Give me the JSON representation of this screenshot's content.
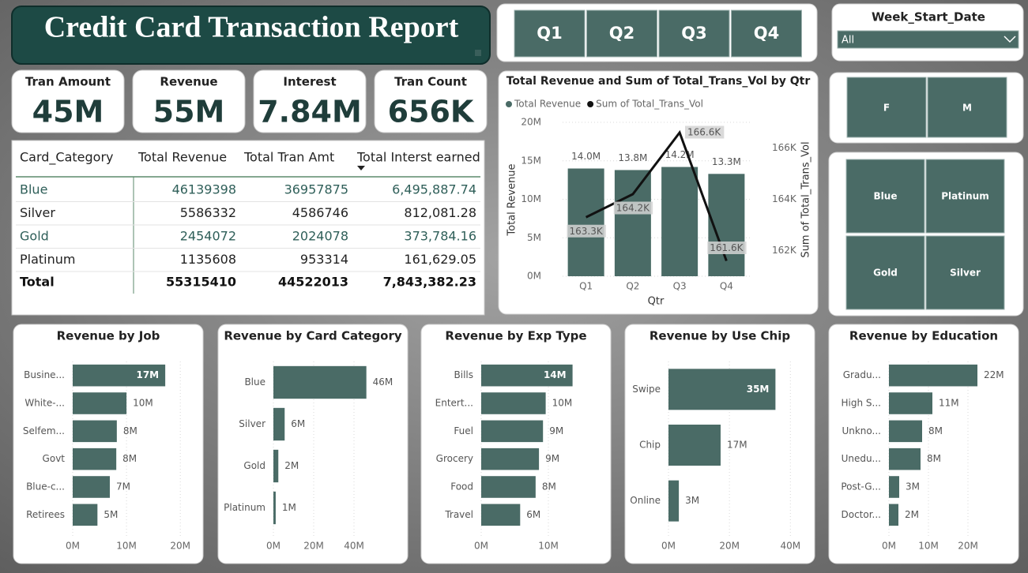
{
  "header": {
    "title": "Credit Card Transaction Report"
  },
  "quarter_slicer": {
    "options": [
      "Q1",
      "Q2",
      "Q3",
      "Q4"
    ]
  },
  "week_slicer": {
    "label": "Week_Start_Date",
    "value": "All"
  },
  "gender_slicer": {
    "options": [
      "F",
      "M"
    ]
  },
  "category_slicer": {
    "options": [
      "Blue",
      "Platinum",
      "Gold",
      "Silver"
    ]
  },
  "cards": [
    {
      "label": "Tran Amount",
      "value": "45M"
    },
    {
      "label": "Revenue",
      "value": "55M"
    },
    {
      "label": "Interest",
      "value": "7.84M"
    },
    {
      "label": "Tran Count",
      "value": "656K"
    }
  ],
  "table": {
    "columns": [
      "Card_Category",
      "Total Revenue",
      "Total Tran Amt",
      "Total Interst earned"
    ],
    "rows": [
      [
        "Blue",
        "46139398",
        "36957875",
        "6,495,887.74"
      ],
      [
        "Silver",
        "5586332",
        "4586746",
        "812,081.28"
      ],
      [
        "Gold",
        "2454072",
        "2024078",
        "373,784.16"
      ],
      [
        "Platinum",
        "1135608",
        "953314",
        "161,629.05"
      ]
    ],
    "total": [
      "Total",
      "55315410",
      "44522013",
      "7,843,382.23"
    ]
  },
  "chart_data": [
    {
      "type": "combo",
      "title": "Total Revenue and Sum of Total_Trans_Vol by Qtr",
      "x_label": "Qtr",
      "y_label": "Total Revenue",
      "y2_label": "Sum of Total_Trans_Vol",
      "categories": [
        "Q1",
        "Q2",
        "Q3",
        "Q4"
      ],
      "series": [
        {
          "name": "Total Revenue",
          "color": "#4a6b66",
          "values": [
            14.0,
            13.8,
            14.2,
            13.3
          ],
          "value_labels": [
            "14.0M",
            "13.8M",
            "14.2M",
            "13.3M"
          ]
        },
        {
          "name": "Sum of Total_Trans_Vol",
          "color": "#111111",
          "axis": "y2",
          "values": [
            163.3,
            164.2,
            166.6,
            161.6
          ],
          "value_labels": [
            "163.3K",
            "164.2K",
            "166.6K",
            "161.6K"
          ]
        }
      ],
      "ylim": [
        0,
        20
      ],
      "yticks": [
        {
          "value": 0,
          "label": "0M"
        },
        {
          "value": 5,
          "label": "5M"
        },
        {
          "value": 10,
          "label": "10M"
        },
        {
          "value": 15,
          "label": "15M"
        },
        {
          "value": 20,
          "label": "20M"
        }
      ],
      "y2lim": [
        161,
        167
      ],
      "y2ticks": [
        {
          "value": 162,
          "label": "162K"
        },
        {
          "value": 164,
          "label": "164K"
        },
        {
          "value": 166,
          "label": "166K"
        }
      ],
      "grid": true
    },
    {
      "type": "bar",
      "orientation": "horizontal",
      "title": "Revenue by Job",
      "color": "#4a6b66",
      "categories": [
        "Busine...",
        "White-...",
        "Selfem...",
        "Govt",
        "Blue-c...",
        "Retirees"
      ],
      "values": [
        17.2,
        10.0,
        8.2,
        8.1,
        6.9,
        4.6
      ],
      "value_labels": [
        "17M",
        "10M",
        "8M",
        "8M",
        "7M",
        "5M"
      ],
      "xlim": [
        0,
        21
      ],
      "xticks": [
        {
          "value": 0,
          "label": "0M"
        },
        {
          "value": 10,
          "label": "10M"
        },
        {
          "value": 20,
          "label": "20M"
        }
      ],
      "grid": true
    },
    {
      "type": "bar",
      "orientation": "horizontal",
      "title": "Revenue by Card Category",
      "color": "#4a6b66",
      "categories": [
        "Blue",
        "Silver",
        "Gold",
        "Platinum"
      ],
      "values": [
        46.14,
        5.59,
        2.45,
        1.14
      ],
      "value_labels": [
        "46M",
        "6M",
        "2M",
        "1M"
      ],
      "xlim": [
        0,
        60
      ],
      "xticks": [
        {
          "value": 0,
          "label": "0M"
        },
        {
          "value": 20,
          "label": "20M"
        },
        {
          "value": 40,
          "label": "40M"
        }
      ],
      "grid": true
    },
    {
      "type": "bar",
      "orientation": "horizontal",
      "title": "Revenue by Exp Type",
      "color": "#4a6b66",
      "categories": [
        "Bills",
        "Entert...",
        "Fuel",
        "Grocery",
        "Food",
        "Travel"
      ],
      "values": [
        13.6,
        9.6,
        9.2,
        8.6,
        8.1,
        5.8
      ],
      "value_labels": [
        "14M",
        "10M",
        "9M",
        "9M",
        "8M",
        "6M"
      ],
      "xlim": [
        0,
        16
      ],
      "xticks": [
        {
          "value": 0,
          "label": "0M"
        },
        {
          "value": 10,
          "label": "10M"
        }
      ],
      "grid": true
    },
    {
      "type": "bar",
      "orientation": "horizontal",
      "title": "Revenue by Use Chip",
      "color": "#4a6b66",
      "categories": [
        "Swipe",
        "Chip",
        "Online"
      ],
      "values": [
        35.1,
        17.1,
        3.4
      ],
      "value_labels": [
        "35M",
        "17M",
        "3M"
      ],
      "xlim": [
        0,
        42
      ],
      "xticks": [
        {
          "value": 0,
          "label": "0M"
        },
        {
          "value": 20,
          "label": "20M"
        },
        {
          "value": 40,
          "label": "40M"
        }
      ],
      "grid": true
    },
    {
      "type": "bar",
      "orientation": "horizontal",
      "title": "Revenue by Education",
      "color": "#4a6b66",
      "categories": [
        "Gradu...",
        "High S...",
        "Unkno...",
        "Unedu...",
        "Post-G...",
        "Doctor..."
      ],
      "values": [
        22.4,
        11.0,
        8.4,
        8.0,
        2.6,
        2.4
      ],
      "value_labels": [
        "22M",
        "11M",
        "8M",
        "8M",
        "3M",
        "2M"
      ],
      "xlim": [
        0,
        30
      ],
      "xticks": [
        {
          "value": 0,
          "label": "0M"
        },
        {
          "value": 10,
          "label": "10M"
        },
        {
          "value": 20,
          "label": "20M"
        }
      ],
      "grid": true
    }
  ]
}
